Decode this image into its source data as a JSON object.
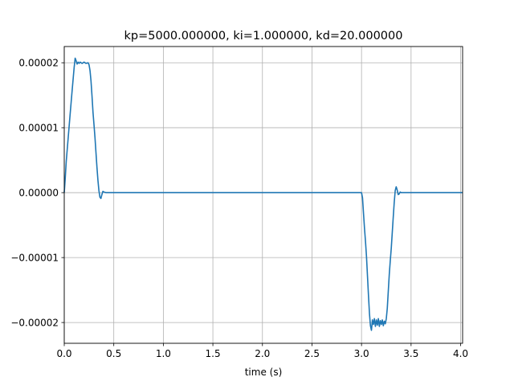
{
  "chart_data": {
    "type": "line",
    "title": "kp=5000.000000, ki=1.000000, kd=20.000000",
    "xlabel": "time (s)",
    "ylabel": "",
    "xlim": [
      0.0,
      4.02
    ],
    "ylim": [
      -2.32e-05,
      2.25e-05
    ],
    "grid": true,
    "x_ticks": [
      {
        "value": 0.0,
        "label": "0.0"
      },
      {
        "value": 0.5,
        "label": "0.5"
      },
      {
        "value": 1.0,
        "label": "1.0"
      },
      {
        "value": 1.5,
        "label": "1.5"
      },
      {
        "value": 2.0,
        "label": "2.0"
      },
      {
        "value": 2.5,
        "label": "2.5"
      },
      {
        "value": 3.0,
        "label": "3.0"
      },
      {
        "value": 3.5,
        "label": "3.5"
      },
      {
        "value": 4.0,
        "label": "4.0"
      }
    ],
    "y_ticks": [
      {
        "value": 2e-05,
        "label": "0.00002"
      },
      {
        "value": 1e-05,
        "label": "0.00001"
      },
      {
        "value": 0.0,
        "label": "0.00000"
      },
      {
        "value": -1e-05,
        "label": "−0.00001"
      },
      {
        "value": -2e-05,
        "label": "−0.00002"
      }
    ],
    "colors": {
      "series": "#1f77b4",
      "grid": "#b0b0b0"
    },
    "series": [
      {
        "x": [
          0.0,
          0.01,
          0.02,
          0.04,
          0.06,
          0.08,
          0.1,
          0.11,
          0.12,
          0.13,
          0.14,
          0.15,
          0.16,
          0.18,
          0.2,
          0.22,
          0.24,
          0.25,
          0.26,
          0.27,
          0.28,
          0.29,
          0.3,
          0.31,
          0.32,
          0.33,
          0.34,
          0.35,
          0.36,
          0.37,
          0.38,
          0.39,
          0.4,
          0.42,
          0.45,
          0.5,
          1.0,
          1.5,
          2.0,
          2.5,
          2.99,
          3.0,
          3.01,
          3.02,
          3.03,
          3.04,
          3.05,
          3.06,
          3.07,
          3.08,
          3.09,
          3.1,
          3.11,
          3.12,
          3.13,
          3.14,
          3.15,
          3.16,
          3.17,
          3.18,
          3.19,
          3.2,
          3.21,
          3.22,
          3.23,
          3.24,
          3.25,
          3.26,
          3.27,
          3.28,
          3.29,
          3.3,
          3.31,
          3.32,
          3.33,
          3.34,
          3.35,
          3.36,
          3.37,
          3.38,
          3.39,
          3.4,
          3.42,
          3.45,
          3.5,
          4.0,
          4.02
        ],
        "y": [
          0.0,
          2.2e-06,
          4.8e-06,
          8.5e-06,
          1.22e-05,
          1.58e-05,
          1.93e-05,
          2.07e-05,
          2.03e-05,
          1.98e-05,
          2.01e-05,
          1.99e-05,
          2.01e-05,
          1.99e-05,
          2.01e-05,
          1.99e-05,
          2e-05,
          1.97e-05,
          1.88e-05,
          1.72e-05,
          1.49e-05,
          1.24e-05,
          1.05e-05,
          8.5e-06,
          6.2e-06,
          3.9e-06,
          1.9e-06,
          3e-07,
          -7e-07,
          -9e-07,
          -3e-07,
          2e-07,
          1e-07,
          0.0,
          0.0,
          0.0,
          0.0,
          0.0,
          0.0,
          0.0,
          0.0,
          0.0,
          -8e-07,
          -3.2e-06,
          -5.5e-06,
          -7.5e-06,
          -9.8e-06,
          -1.28e-05,
          -1.58e-05,
          -1.86e-05,
          -2.05e-05,
          -2.12e-05,
          -1.96e-05,
          -2.03e-05,
          -1.94e-05,
          -2.06e-05,
          -1.96e-05,
          -2.04e-05,
          -1.94e-05,
          -2.06e-05,
          -1.97e-05,
          -2.03e-05,
          -1.96e-05,
          -2.05e-05,
          -1.98e-05,
          -2.02e-05,
          -1.94e-05,
          -1.78e-05,
          -1.52e-05,
          -1.26e-05,
          -1.05e-05,
          -8.6e-06,
          -6.2e-06,
          -3.8e-06,
          -1.5e-06,
          3e-07,
          9e-07,
          4e-07,
          -3e-07,
          -2e-07,
          1e-07,
          0.0,
          0.0,
          0.0,
          0.0,
          0.0,
          0.0
        ]
      }
    ]
  }
}
